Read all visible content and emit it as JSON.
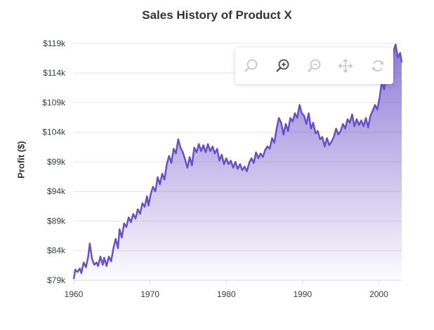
{
  "chart_data": {
    "type": "area",
    "title": "Sales History of Product X",
    "xlabel": "",
    "ylabel": "Profit ($)",
    "xlim": [
      1960,
      2003
    ],
    "ylim": [
      79,
      121
    ],
    "x_ticks": [
      1960,
      1970,
      1980,
      1990,
      2000
    ],
    "y_ticks": [
      "$79k",
      "$84k",
      "$89k",
      "$94k",
      "$99k",
      "$104k",
      "$109k",
      "$114k",
      "$119k"
    ],
    "y_tick_values": [
      79,
      84,
      89,
      94,
      99,
      104,
      109,
      114,
      119
    ],
    "grid": "horizontal",
    "line_color": "#6a50c8",
    "fill_color": "#6a50c8",
    "points": [
      [
        1960.0,
        79.2
      ],
      [
        1960.2,
        80.8
      ],
      [
        1960.5,
        80.4
      ],
      [
        1960.8,
        81.0
      ],
      [
        1961.0,
        80.2
      ],
      [
        1961.3,
        82.0
      ],
      [
        1961.6,
        81.2
      ],
      [
        1961.9,
        83.0
      ],
      [
        1962.1,
        85.2
      ],
      [
        1962.4,
        82.6
      ],
      [
        1962.7,
        81.6
      ],
      [
        1963.0,
        82.0
      ],
      [
        1963.2,
        81.4
      ],
      [
        1963.5,
        83.0
      ],
      [
        1963.8,
        81.6
      ],
      [
        1964.0,
        82.8
      ],
      [
        1964.3,
        81.4
      ],
      [
        1964.6,
        83.0
      ],
      [
        1964.9,
        82.2
      ],
      [
        1965.2,
        84.4
      ],
      [
        1965.5,
        86.0
      ],
      [
        1965.8,
        84.4
      ],
      [
        1966.0,
        87.6
      ],
      [
        1966.3,
        86.2
      ],
      [
        1966.6,
        88.6
      ],
      [
        1966.9,
        88.0
      ],
      [
        1967.2,
        89.6
      ],
      [
        1967.5,
        88.8
      ],
      [
        1967.8,
        90.2
      ],
      [
        1968.1,
        89.4
      ],
      [
        1968.4,
        91.0
      ],
      [
        1968.7,
        90.2
      ],
      [
        1969.0,
        92.0
      ],
      [
        1969.3,
        91.4
      ],
      [
        1969.6,
        93.2
      ],
      [
        1969.8,
        91.6
      ],
      [
        1970.1,
        93.6
      ],
      [
        1970.4,
        94.8
      ],
      [
        1970.7,
        94.0
      ],
      [
        1971.0,
        96.4
      ],
      [
        1971.3,
        95.2
      ],
      [
        1971.6,
        97.0
      ],
      [
        1971.9,
        96.0
      ],
      [
        1972.2,
        98.6
      ],
      [
        1972.5,
        100.0
      ],
      [
        1972.8,
        98.8
      ],
      [
        1973.1,
        101.2
      ],
      [
        1973.4,
        100.4
      ],
      [
        1973.7,
        102.8
      ],
      [
        1974.0,
        101.4
      ],
      [
        1974.3,
        100.6
      ],
      [
        1974.6,
        99.4
      ],
      [
        1974.9,
        98.0
      ],
      [
        1975.2,
        99.8
      ],
      [
        1975.5,
        98.4
      ],
      [
        1975.8,
        101.4
      ],
      [
        1976.1,
        100.6
      ],
      [
        1976.4,
        102.0
      ],
      [
        1976.7,
        100.8
      ],
      [
        1977.0,
        101.8
      ],
      [
        1977.3,
        100.6
      ],
      [
        1977.6,
        102.0
      ],
      [
        1977.9,
        100.8
      ],
      [
        1978.2,
        101.6
      ],
      [
        1978.5,
        100.4
      ],
      [
        1978.8,
        101.2
      ],
      [
        1979.1,
        99.2
      ],
      [
        1979.4,
        100.2
      ],
      [
        1979.7,
        98.6
      ],
      [
        1980.0,
        99.6
      ],
      [
        1980.3,
        98.6
      ],
      [
        1980.6,
        99.2
      ],
      [
        1980.9,
        98.0
      ],
      [
        1981.2,
        99.0
      ],
      [
        1981.5,
        97.8
      ],
      [
        1981.8,
        98.6
      ],
      [
        1982.1,
        97.6
      ],
      [
        1982.4,
        98.2
      ],
      [
        1982.7,
        97.4
      ],
      [
        1983.0,
        98.8
      ],
      [
        1983.3,
        99.6
      ],
      [
        1983.6,
        98.8
      ],
      [
        1983.9,
        100.6
      ],
      [
        1984.2,
        99.6
      ],
      [
        1984.5,
        100.4
      ],
      [
        1984.8,
        99.8
      ],
      [
        1985.1,
        101.0
      ],
      [
        1985.4,
        101.6
      ],
      [
        1985.7,
        101.2
      ],
      [
        1986.0,
        103.0
      ],
      [
        1986.3,
        102.2
      ],
      [
        1986.6,
        104.6
      ],
      [
        1986.9,
        106.4
      ],
      [
        1987.2,
        105.6
      ],
      [
        1987.5,
        103.6
      ],
      [
        1987.8,
        105.4
      ],
      [
        1988.1,
        104.2
      ],
      [
        1988.4,
        106.4
      ],
      [
        1988.7,
        105.8
      ],
      [
        1989.0,
        107.2
      ],
      [
        1989.3,
        106.4
      ],
      [
        1989.6,
        108.6
      ],
      [
        1989.9,
        107.2
      ],
      [
        1990.2,
        106.8
      ],
      [
        1990.5,
        105.4
      ],
      [
        1990.8,
        107.2
      ],
      [
        1991.1,
        104.6
      ],
      [
        1991.4,
        105.6
      ],
      [
        1991.7,
        103.8
      ],
      [
        1992.0,
        104.2
      ],
      [
        1992.3,
        102.8
      ],
      [
        1992.6,
        103.2
      ],
      [
        1992.9,
        101.6
      ],
      [
        1993.2,
        103.0
      ],
      [
        1993.5,
        101.8
      ],
      [
        1993.8,
        102.4
      ],
      [
        1994.1,
        103.2
      ],
      [
        1994.4,
        104.6
      ],
      [
        1994.7,
        103.6
      ],
      [
        1995.0,
        104.2
      ],
      [
        1995.3,
        105.4
      ],
      [
        1995.6,
        104.6
      ],
      [
        1995.9,
        106.2
      ],
      [
        1996.2,
        105.6
      ],
      [
        1996.5,
        107.0
      ],
      [
        1996.8,
        105.0
      ],
      [
        1997.1,
        106.2
      ],
      [
        1997.4,
        105.2
      ],
      [
        1997.7,
        106.0
      ],
      [
        1998.0,
        105.0
      ],
      [
        1998.3,
        106.4
      ],
      [
        1998.6,
        104.8
      ],
      [
        1998.9,
        106.8
      ],
      [
        1999.2,
        107.6
      ],
      [
        1999.5,
        108.6
      ],
      [
        1999.8,
        107.8
      ],
      [
        2000.1,
        109.8
      ],
      [
        2000.4,
        112.6
      ],
      [
        2000.7,
        111.2
      ],
      [
        2001.0,
        113.4
      ],
      [
        2001.3,
        112.6
      ],
      [
        2001.6,
        115.4
      ],
      [
        2001.9,
        117.6
      ],
      [
        2002.2,
        118.8
      ],
      [
        2002.5,
        116.6
      ],
      [
        2002.8,
        117.4
      ],
      [
        2003.0,
        115.8
      ]
    ]
  },
  "toolbar": {
    "tools": [
      {
        "name": "selection-zoom-icon",
        "active": false
      },
      {
        "name": "zoom-in-icon",
        "active": true
      },
      {
        "name": "zoom-out-icon",
        "active": false
      },
      {
        "name": "pan-icon",
        "active": false
      },
      {
        "name": "reset-icon",
        "active": false
      }
    ]
  }
}
